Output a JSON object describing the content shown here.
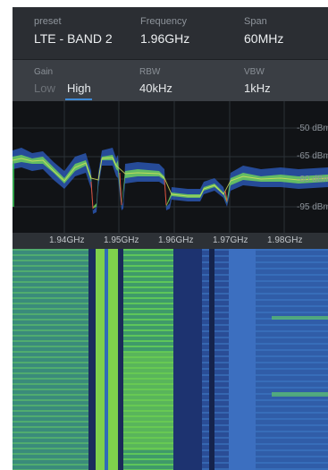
{
  "header": {
    "preset_label": "preset",
    "preset_value": "LTE - BAND 2",
    "frequency_label": "Frequency",
    "frequency_value": "1.96GHz",
    "span_label": "Span",
    "span_value": "60MHz"
  },
  "controls": {
    "gain_label": "Gain",
    "gain_options": [
      "Low",
      "High"
    ],
    "gain_selected": "High",
    "rbw_label": "RBW",
    "rbw_value": "40kHz",
    "vbw_label": "VBW",
    "vbw_value": "1kHz"
  },
  "spectrum": {
    "dbm_labels": [
      "-50 dBm",
      "-65 dBm",
      "-80 dBm",
      "-95 dBm"
    ]
  },
  "freq_axis": {
    "ticks": [
      "1.94GHz",
      "1.95GHz",
      "1.96GHz",
      "1.97GHz",
      "1.98GHz"
    ]
  },
  "colors": {
    "accent": "#3f8ad6",
    "trace_green": "#7fd35a",
    "trace_blue": "#3a6fd8",
    "waterfall_blue": "#1c3a7a",
    "waterfall_green": "#4fbe55"
  }
}
